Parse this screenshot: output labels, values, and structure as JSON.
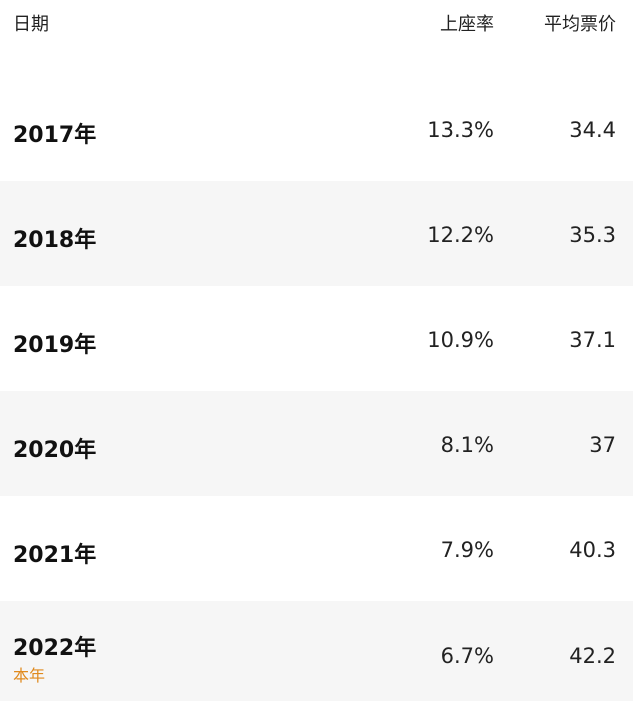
{
  "header": {
    "date": "日期",
    "occupancy": "上座率",
    "avg_price": "平均票价"
  },
  "rows": [
    {
      "date": "2017年",
      "occupancy": "13.3%",
      "avg_price": "34.4"
    },
    {
      "date": "2018年",
      "occupancy": "12.2%",
      "avg_price": "35.3"
    },
    {
      "date": "2019年",
      "occupancy": "10.9%",
      "avg_price": "37.1"
    },
    {
      "date": "2020年",
      "occupancy": "8.1%",
      "avg_price": "37"
    },
    {
      "date": "2021年",
      "occupancy": "7.9%",
      "avg_price": "40.3"
    },
    {
      "date": "2022年",
      "occupancy": "6.7%",
      "avg_price": "42.2",
      "tag": "本年"
    }
  ],
  "colors": {
    "tag": "#e08a1e",
    "alt_row": "#f6f6f6"
  }
}
